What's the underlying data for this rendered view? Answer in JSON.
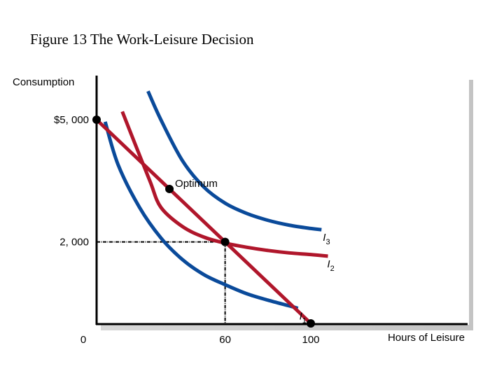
{
  "chart_data": {
    "type": "line",
    "title": "Figure 13 The Work-Leisure Decision",
    "ylabel": "Consumption",
    "xlabel": "Hours of Leisure",
    "xlim": [
      0,
      100
    ],
    "ylim": [
      0,
      5000
    ],
    "x_ticks": [
      {
        "value": 0,
        "label": "0"
      },
      {
        "value": 60,
        "label": "60"
      },
      {
        "value": 100,
        "label": "100"
      }
    ],
    "y_ticks": [
      {
        "value": 5000,
        "label": "$5, 000"
      },
      {
        "value": 2000,
        "label": "2, 000"
      }
    ],
    "budget_line": {
      "x": [
        0,
        100
      ],
      "y": [
        5000,
        0
      ],
      "color": "#b0162b"
    },
    "series": [
      {
        "name": "I1",
        "color": "#0a4a9a",
        "x": [
          4,
          10,
          20,
          30,
          40,
          50,
          60,
          70,
          80,
          90,
          94
        ],
        "y": [
          4950,
          3900,
          2850,
          2100,
          1570,
          1200,
          950,
          730,
          570,
          430,
          370
        ]
      },
      {
        "name": "I2",
        "color": "#b0162b",
        "x": [
          12,
          18,
          25,
          30,
          40,
          50,
          60,
          70,
          80,
          90,
          100,
          108
        ],
        "y": [
          5200,
          4400,
          3480,
          2850,
          2380,
          2120,
          1970,
          1870,
          1790,
          1730,
          1690,
          1650
        ]
      },
      {
        "name": "I3",
        "color": "#0a4a9a",
        "x": [
          24,
          30,
          40,
          50,
          60,
          70,
          80,
          90,
          100,
          105
        ],
        "y": [
          5700,
          5000,
          4000,
          3350,
          2950,
          2700,
          2530,
          2410,
          2330,
          2300
        ]
      }
    ],
    "points": [
      {
        "x": 0,
        "y": 5000
      },
      {
        "x": 34,
        "y": 3300,
        "label": "Optimum"
      },
      {
        "x": 60,
        "y": 2000
      },
      {
        "x": 100,
        "y": 0
      }
    ],
    "reference_lines": {
      "x": 60,
      "y": 2000
    },
    "curve_labels": [
      {
        "base": "I",
        "sub": "3",
        "x": 105,
        "y": 2300
      },
      {
        "base": "I",
        "sub": "2",
        "x": 107,
        "y": 1650
      },
      {
        "base": "I",
        "sub": "1",
        "x": 94,
        "y": 370
      }
    ]
  }
}
